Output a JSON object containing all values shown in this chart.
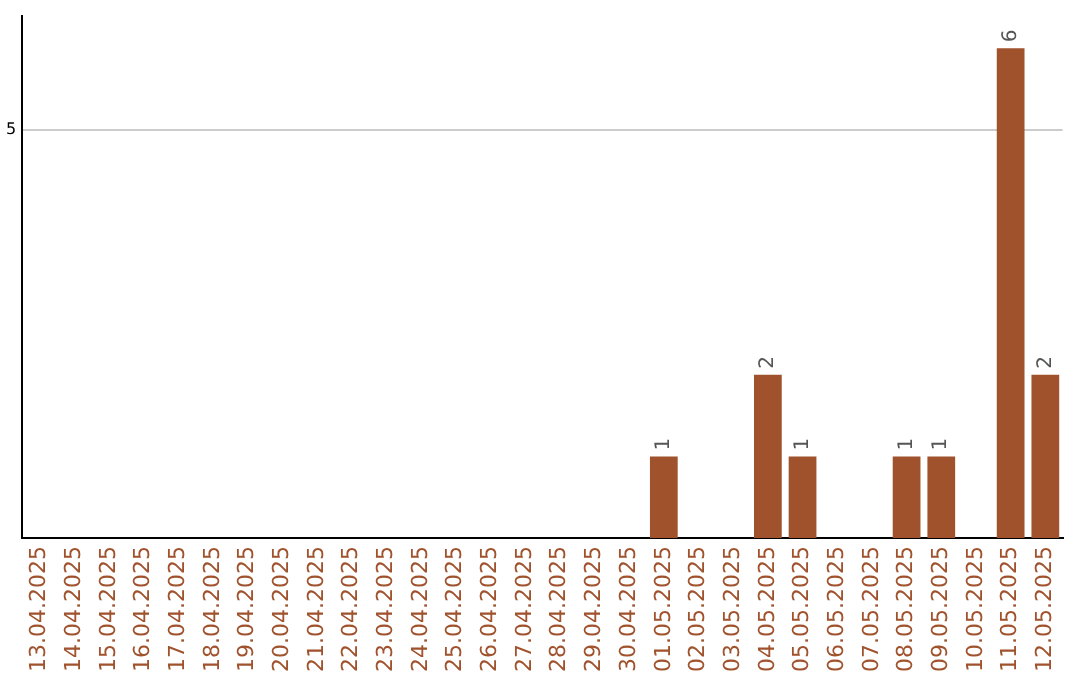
{
  "chart_data": {
    "type": "bar",
    "categories": [
      "13.04.2025",
      "14.04.2025",
      "15.04.2025",
      "16.04.2025",
      "17.04.2025",
      "18.04.2025",
      "19.04.2025",
      "20.04.2025",
      "21.04.2025",
      "22.04.2025",
      "23.04.2025",
      "24.04.2025",
      "25.04.2025",
      "26.04.2025",
      "27.04.2025",
      "28.04.2025",
      "29.04.2025",
      "30.04.2025",
      "01.05.2025",
      "02.05.2025",
      "03.05.2025",
      "04.05.2025",
      "05.05.2025",
      "06.05.2025",
      "07.05.2025",
      "08.05.2025",
      "09.05.2025",
      "10.05.2025",
      "11.05.2025",
      "12.05.2025"
    ],
    "values": [
      null,
      null,
      null,
      null,
      null,
      null,
      null,
      null,
      null,
      null,
      null,
      null,
      null,
      null,
      null,
      null,
      null,
      null,
      1,
      null,
      null,
      2,
      1,
      null,
      null,
      1,
      1,
      null,
      6,
      2
    ],
    "color": "#a0522d",
    "ylim": [
      0,
      6.4
    ],
    "yticks": [
      5
    ],
    "grid": "y",
    "data_labels": true,
    "legend": false
  }
}
